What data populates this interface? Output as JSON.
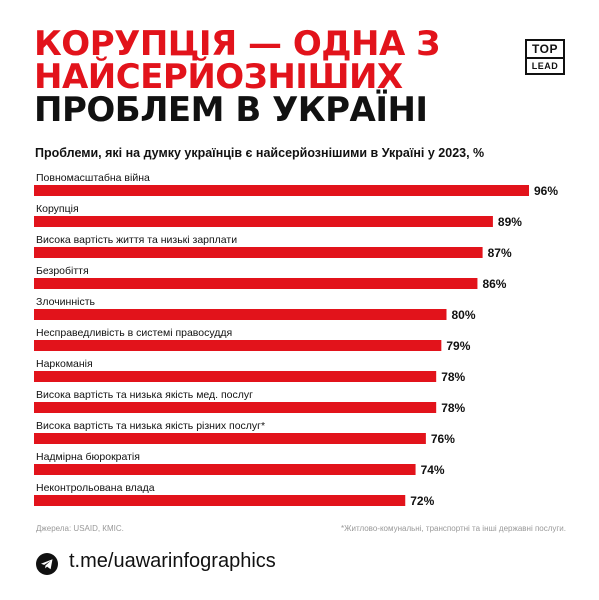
{
  "title": {
    "line1": "КОРУПЦІЯ — ОДНА З",
    "line2": "НАЙСЕРЙОЗНІШИХ",
    "line3": "ПРОБЛЕМ В УКРАЇНІ"
  },
  "logo": {
    "top": "TOP",
    "bottom": "LEAD"
  },
  "colors": {
    "accent": "#e2131b",
    "text": "#111111",
    "muted": "#999999"
  },
  "chart_data": {
    "type": "bar",
    "orientation": "horizontal",
    "title": "Проблеми, які на думку українців є найсерйознішими в Україні у 2023, %",
    "categories": [
      "Повномасштабна війна",
      "Корупція",
      "Висока вартість життя та низькі зарплати",
      "Безробіття",
      "Злочинність",
      "Несправедливість в системі правосуддя",
      "Наркоманія",
      "Висока вартість та низька якість мед. послуг",
      "Висока вартість та низька якість різних послуг*",
      "Надмірна бюрократія",
      "Неконтрольована влада"
    ],
    "values": [
      96,
      89,
      87,
      86,
      80,
      79,
      78,
      78,
      76,
      74,
      72
    ],
    "value_labels": [
      "96%",
      "89%",
      "87%",
      "86%",
      "80%",
      "79%",
      "78%",
      "78%",
      "76%",
      "74%",
      "72%"
    ],
    "xlim": [
      0,
      96
    ],
    "grid": false
  },
  "footer": {
    "source": "Джерела: USAID, КМІС.",
    "footnote": "*Житлово-комунальні, транспортні та інші державні послуги.",
    "link": "t.me/uawarinfographics",
    "link_icon": "telegram-icon"
  }
}
